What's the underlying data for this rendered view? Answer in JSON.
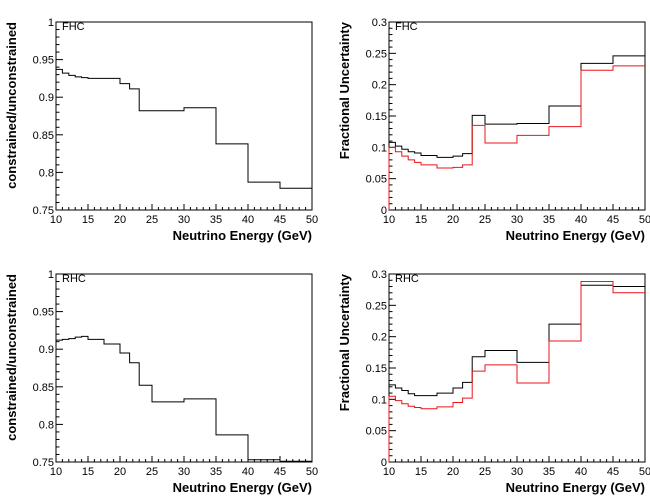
{
  "colors": {
    "black_series": "#000000",
    "red_series": "#e8151b",
    "axis": "#000000"
  },
  "chart_data": [
    {
      "type": "line",
      "step": true,
      "panel_label": "FHC",
      "xlabel": "Neutrino Energy (GeV)",
      "ylabel": "constrained/unconstrained",
      "xlim": [
        10,
        50
      ],
      "ylim": [
        0.75,
        1.0
      ],
      "xticks": [
        10,
        15,
        20,
        25,
        30,
        35,
        40,
        45,
        50
      ],
      "xtick_labels": [
        "10",
        "15",
        "20",
        "25",
        "30",
        "35",
        "40",
        "45",
        "50"
      ],
      "yticks": [
        0.75,
        0.8,
        0.85,
        0.9,
        0.95,
        1.0
      ],
      "ytick_labels": [
        "0.75",
        "0.8",
        "0.85",
        "0.9",
        "0.95",
        "1"
      ],
      "bin_edges": [
        10,
        11,
        12,
        13,
        14,
        15,
        17.5,
        20,
        21.5,
        23,
        25,
        30,
        35,
        40,
        45,
        50
      ],
      "series": [
        {
          "color": "#000000",
          "values": [
            0.937,
            0.932,
            0.929,
            0.927,
            0.926,
            0.925,
            0.925,
            0.918,
            0.911,
            0.882,
            0.882,
            0.886,
            0.838,
            0.787,
            0.779
          ]
        }
      ]
    },
    {
      "type": "line",
      "step": true,
      "panel_label": "FHC",
      "xlabel": "Neutrino Energy (GeV)",
      "ylabel": "Fractional Uncertainty",
      "xlim": [
        10,
        50
      ],
      "ylim": [
        0,
        0.3
      ],
      "xticks": [
        10,
        15,
        20,
        25,
        30,
        35,
        40,
        45,
        50
      ],
      "xtick_labels": [
        "10",
        "15",
        "20",
        "25",
        "30",
        "35",
        "40",
        "45",
        "50"
      ],
      "yticks": [
        0,
        0.05,
        0.1,
        0.15,
        0.2,
        0.25,
        0.3
      ],
      "ytick_labels": [
        "0",
        "0.05",
        "0.1",
        "0.15",
        "0.2",
        "0.25",
        "0.3"
      ],
      "bin_edges": [
        10,
        11,
        12,
        13,
        14,
        15,
        17.5,
        20,
        21.5,
        23,
        25,
        30,
        35,
        40,
        45,
        50
      ],
      "series": [
        {
          "color": "#000000",
          "values": [
            0.108,
            0.102,
            0.097,
            0.093,
            0.091,
            0.087,
            0.084,
            0.086,
            0.09,
            0.151,
            0.137,
            0.138,
            0.166,
            0.234,
            0.246
          ]
        },
        {
          "color": "#e8151b",
          "values": [
            0.1,
            0.093,
            0.086,
            0.08,
            0.076,
            0.072,
            0.067,
            0.068,
            0.072,
            0.135,
            0.107,
            0.119,
            0.133,
            0.223,
            0.23
          ]
        }
      ]
    },
    {
      "type": "line",
      "step": true,
      "panel_label": "RHC",
      "xlabel": "Neutrino Energy (GeV)",
      "ylabel": "constrained/unconstrained",
      "xlim": [
        10,
        50
      ],
      "ylim": [
        0.75,
        1.0
      ],
      "xticks": [
        10,
        15,
        20,
        25,
        30,
        35,
        40,
        45,
        50
      ],
      "xtick_labels": [
        "10",
        "15",
        "20",
        "25",
        "30",
        "35",
        "40",
        "45",
        "50"
      ],
      "yticks": [
        0.75,
        0.8,
        0.85,
        0.9,
        0.95,
        1.0
      ],
      "ytick_labels": [
        "0.75",
        "0.8",
        "0.85",
        "0.9",
        "0.95",
        "1"
      ],
      "bin_edges": [
        10,
        11,
        12,
        13,
        14,
        15,
        17.5,
        20,
        21.5,
        23,
        25,
        30,
        35,
        40,
        45,
        50
      ],
      "series": [
        {
          "color": "#000000",
          "values": [
            0.912,
            0.913,
            0.914,
            0.916,
            0.917,
            0.913,
            0.907,
            0.895,
            0.882,
            0.852,
            0.83,
            0.834,
            0.786,
            0.753,
            0.751
          ]
        }
      ]
    },
    {
      "type": "line",
      "step": true,
      "panel_label": "RHC",
      "xlabel": "Neutrino Energy (GeV)",
      "ylabel": "Fractional Uncertainty",
      "xlim": [
        10,
        50
      ],
      "ylim": [
        0,
        0.3
      ],
      "xticks": [
        10,
        15,
        20,
        25,
        30,
        35,
        40,
        45,
        50
      ],
      "xtick_labels": [
        "10",
        "15",
        "20",
        "25",
        "30",
        "35",
        "40",
        "45",
        "50"
      ],
      "yticks": [
        0,
        0.05,
        0.1,
        0.15,
        0.2,
        0.25,
        0.3
      ],
      "ytick_labels": [
        "0",
        "0.05",
        "0.1",
        "0.15",
        "0.2",
        "0.25",
        "0.3"
      ],
      "bin_edges": [
        10,
        11,
        12,
        13,
        14,
        15,
        17.5,
        20,
        21.5,
        23,
        25,
        30,
        35,
        40,
        45,
        50
      ],
      "series": [
        {
          "color": "#000000",
          "values": [
            0.123,
            0.118,
            0.114,
            0.109,
            0.106,
            0.106,
            0.11,
            0.118,
            0.127,
            0.168,
            0.178,
            0.159,
            0.22,
            0.282,
            0.28
          ]
        },
        {
          "color": "#e8151b",
          "values": [
            0.105,
            0.098,
            0.093,
            0.089,
            0.087,
            0.085,
            0.088,
            0.095,
            0.102,
            0.145,
            0.155,
            0.126,
            0.193,
            0.288,
            0.27
          ]
        }
      ]
    }
  ]
}
